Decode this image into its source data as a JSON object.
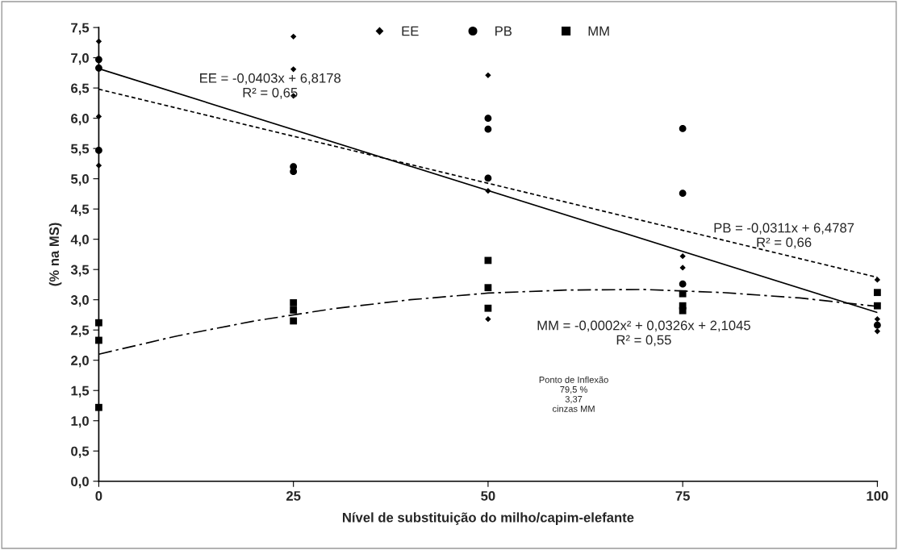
{
  "chart_data": {
    "type": "scatter",
    "xlabel": "Nível de substituição do milho/capim-elefante",
    "ylabel": "(% na MS)",
    "xlim": [
      0,
      100
    ],
    "xticks": [
      0,
      25,
      50,
      75,
      100
    ],
    "ylim": [
      0,
      7.5
    ],
    "yticks": [
      {
        "value": 0,
        "label": "0,0"
      },
      {
        "value": 0.5,
        "label": "0,5"
      },
      {
        "value": 1,
        "label": "1,0"
      },
      {
        "value": 1.5,
        "label": "1,5"
      },
      {
        "value": 2,
        "label": "2,0"
      },
      {
        "value": 2.5,
        "label": "2,5"
      },
      {
        "value": 3,
        "label": "3,0"
      },
      {
        "value": 3.5,
        "label": "3,5"
      },
      {
        "value": 4,
        "label": "4,0"
      },
      {
        "value": 4.5,
        "label": "4,5"
      },
      {
        "value": 5,
        "label": "5,0"
      },
      {
        "value": 5.5,
        "label": "5,5"
      },
      {
        "value": 6,
        "label": "6,0"
      },
      {
        "value": 6.5,
        "label": "6,5"
      },
      {
        "value": 7,
        "label": "7,0"
      },
      {
        "value": 7.5,
        "label": "7,5"
      }
    ],
    "grid": false,
    "legend": "top",
    "series": [
      {
        "name": "EE",
        "marker": "diamond",
        "color": "#000000",
        "x": [
          0,
          0,
          0,
          25,
          25,
          25,
          50,
          50,
          50,
          75,
          75,
          100,
          100,
          100
        ],
        "values": [
          7.27,
          6.03,
          5.22,
          7.35,
          6.81,
          6.37,
          6.71,
          4.8,
          2.68,
          3.72,
          3.53,
          3.33,
          2.68,
          2.48
        ]
      },
      {
        "name": "PB",
        "marker": "circle",
        "color": "#000000",
        "x": [
          0,
          0,
          0,
          25,
          25,
          50,
          50,
          50,
          75,
          75,
          75,
          100
        ],
        "values": [
          6.97,
          6.83,
          5.47,
          5.2,
          5.12,
          6.0,
          5.82,
          5.01,
          5.83,
          4.76,
          3.26,
          2.58
        ]
      },
      {
        "name": "MM",
        "marker": "square",
        "color": "#000000",
        "x": [
          0,
          0,
          0,
          25,
          25,
          25,
          50,
          50,
          50,
          75,
          75,
          75,
          100,
          100
        ],
        "values": [
          2.62,
          2.33,
          1.22,
          2.95,
          2.83,
          2.65,
          3.65,
          3.2,
          2.86,
          3.1,
          2.9,
          2.82,
          3.12,
          2.9
        ]
      },
      {
        "type": "line",
        "line_style": "solid",
        "marker": "none",
        "color": "#000000",
        "x": [
          0,
          100
        ],
        "values": [
          6.82,
          2.79
        ]
      },
      {
        "type": "line",
        "line_style": "dashed",
        "marker": "none",
        "color": "#000000",
        "x": [
          0,
          100
        ],
        "values": [
          6.48,
          3.37
        ]
      },
      {
        "type": "line",
        "line_style": "dashdot",
        "marker": "none",
        "color": "#000000",
        "x": [
          0,
          10,
          20,
          30,
          40,
          50,
          60,
          70,
          80,
          90,
          100
        ],
        "values": [
          2.1,
          2.4,
          2.65,
          2.85,
          3.0,
          3.11,
          3.16,
          3.17,
          3.12,
          3.03,
          2.89
        ]
      }
    ],
    "annotations": [
      "EE = -0,0403x + 6,8178\nR² = 0,65",
      "PB = -0,0311x + 6,4787\nR² = 0,66",
      "MM = -0,0002x² + 0,0326x + 2,1045\nR² = 0,55",
      "Ponto de Inflexão\n79,5 %\n3,37\ncinzas MM"
    ]
  }
}
